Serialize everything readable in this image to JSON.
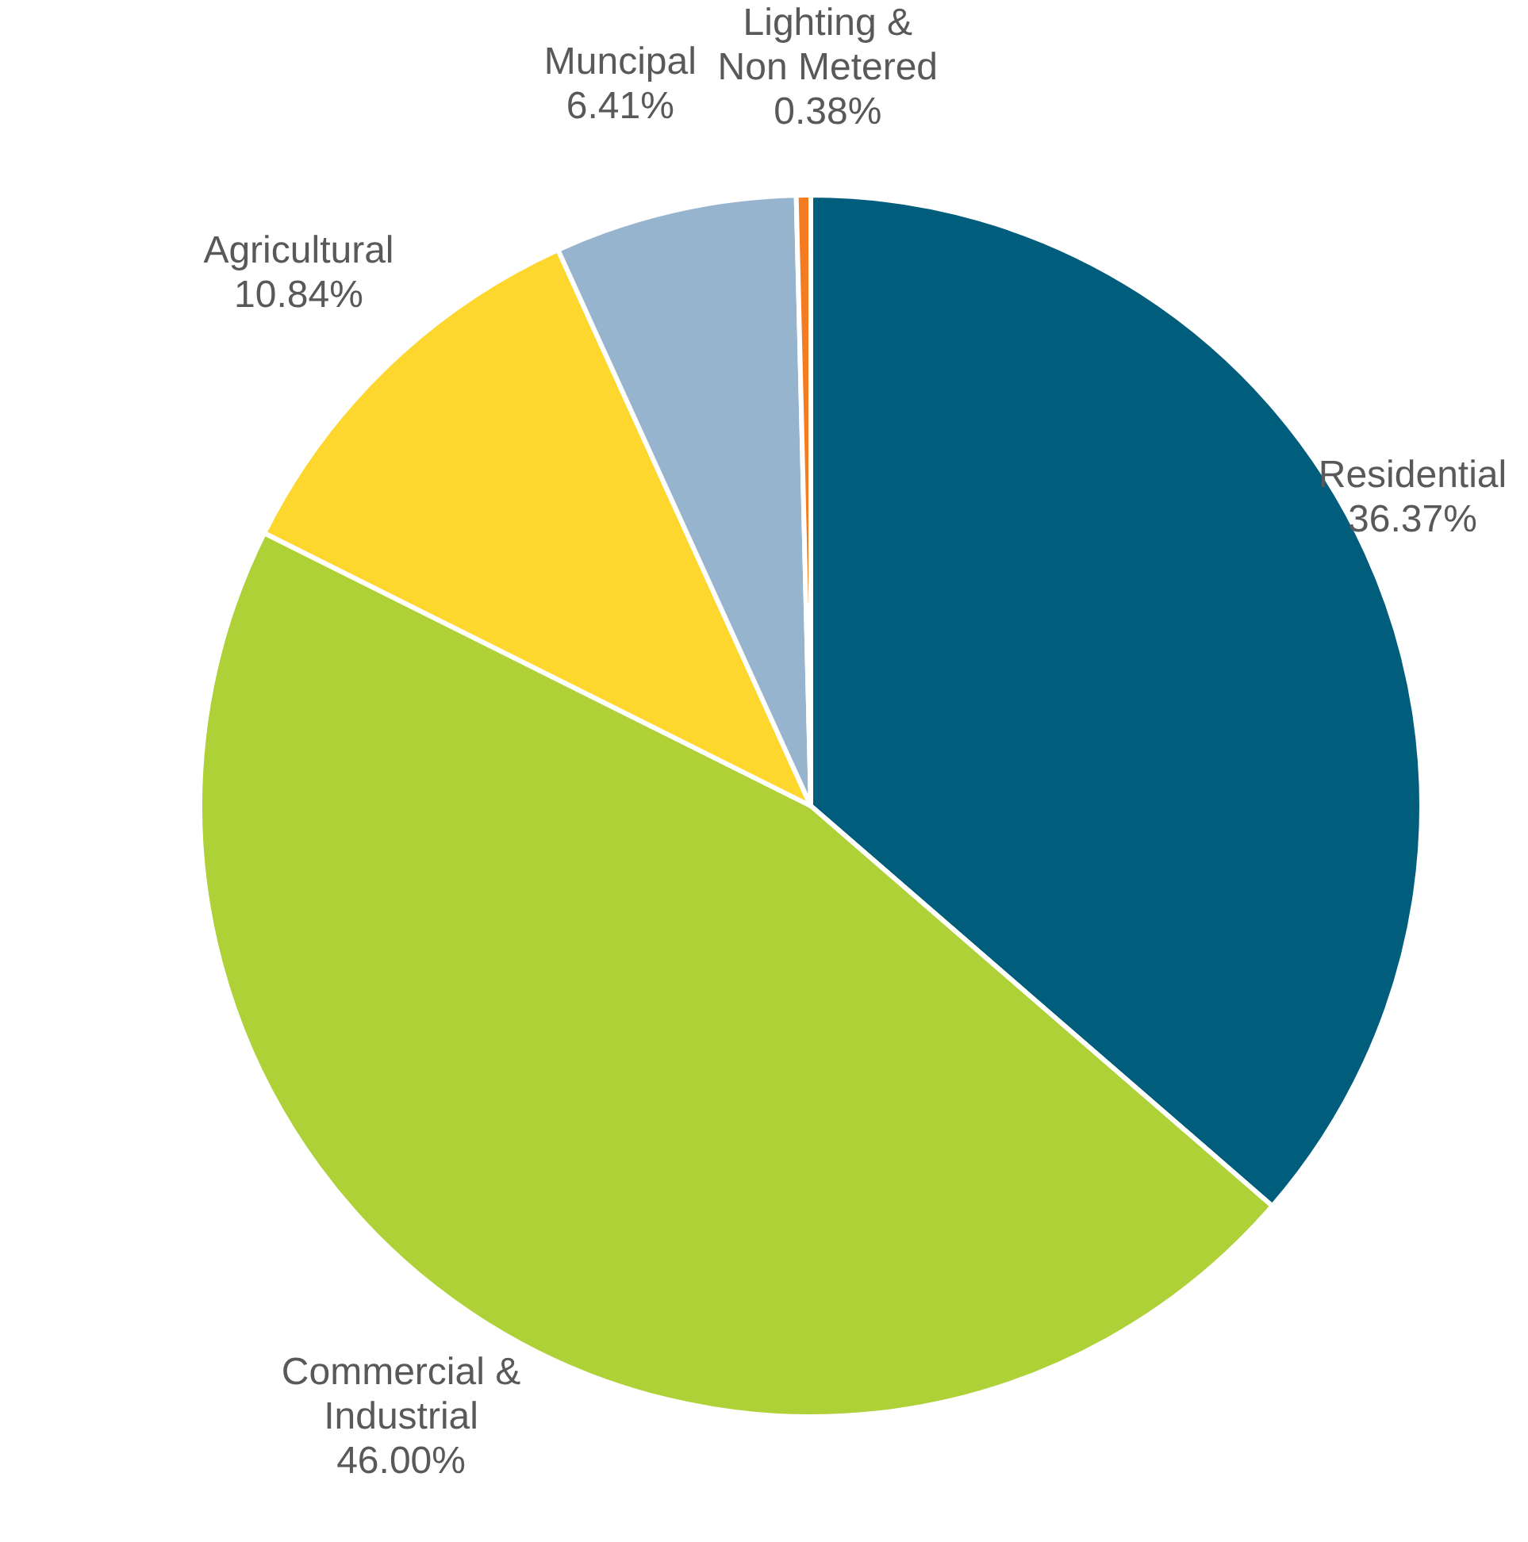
{
  "chart_data": {
    "type": "pie",
    "categories": [
      "Residential",
      "Commercial & Industrial",
      "Agricultural",
      "Muncipal",
      "Lighting & Non Metered"
    ],
    "values": [
      36.37,
      46.0,
      10.84,
      6.41,
      0.38
    ],
    "colors": [
      "#005e7c",
      "#add136",
      "#fdd62e",
      "#97b4cf",
      "#f47b20"
    ],
    "value_labels": [
      "36.37%",
      "46.00%",
      "10.84%",
      "6.41%",
      "0.38%"
    ]
  }
}
